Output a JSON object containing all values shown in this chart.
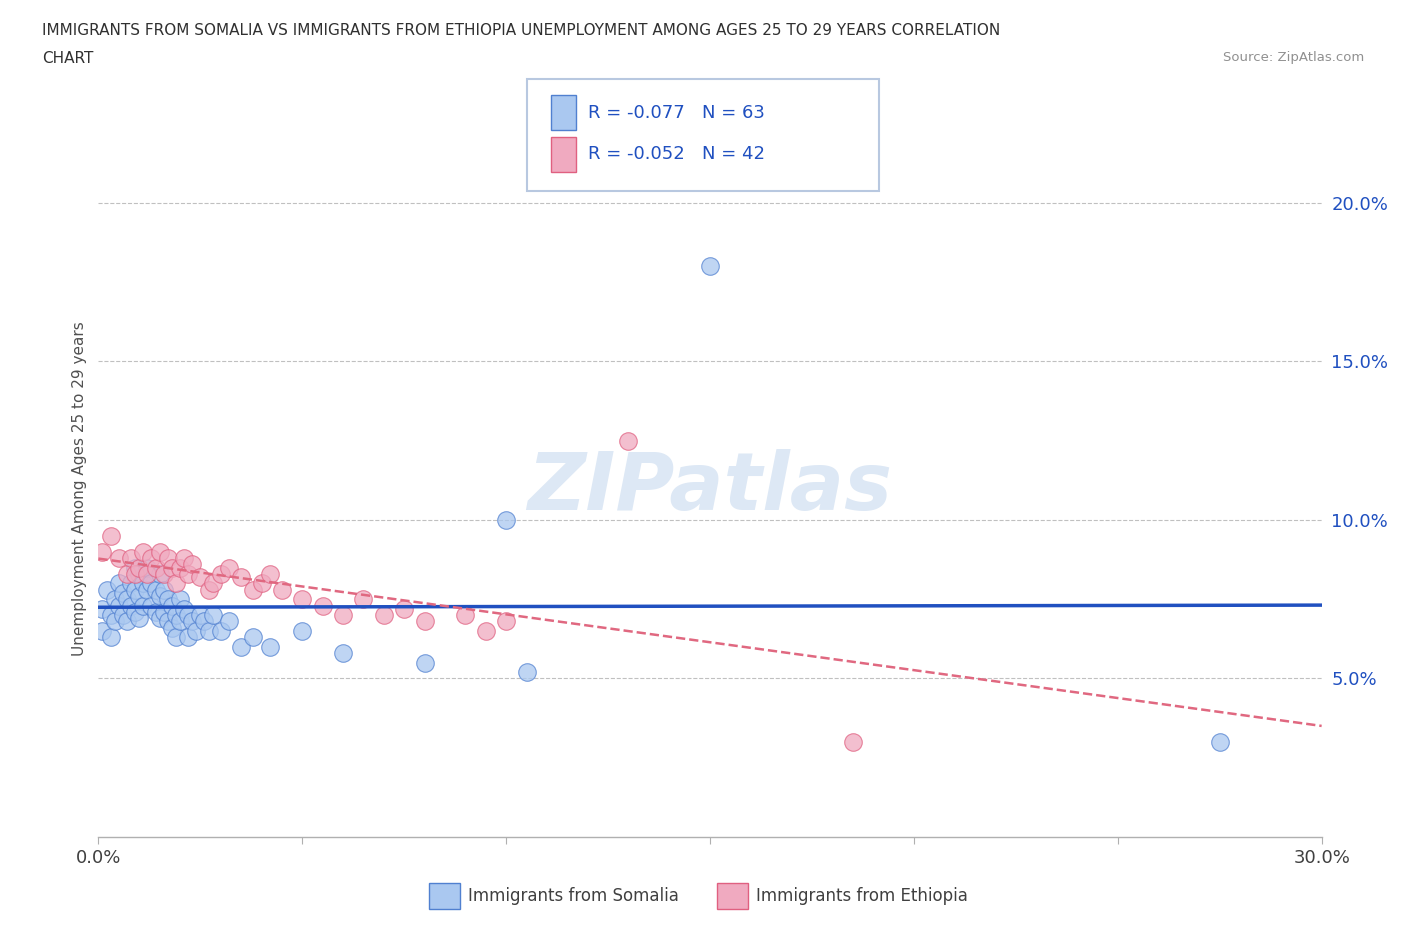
{
  "title_line1": "IMMIGRANTS FROM SOMALIA VS IMMIGRANTS FROM ETHIOPIA UNEMPLOYMENT AMONG AGES 25 TO 29 YEARS CORRELATION",
  "title_line2": "CHART",
  "source_text": "Source: ZipAtlas.com",
  "ylabel": "Unemployment Among Ages 25 to 29 years",
  "xlim": [
    0.0,
    0.3
  ],
  "ylim": [
    0.0,
    0.22
  ],
  "x_ticks": [
    0.0,
    0.05,
    0.1,
    0.15,
    0.2,
    0.25,
    0.3
  ],
  "y_ticks": [
    0.05,
    0.1,
    0.15,
    0.2
  ],
  "y_tick_labels": [
    "5.0%",
    "10.0%",
    "15.0%",
    "20.0%"
  ],
  "somalia_color": "#aac8f0",
  "ethiopia_color": "#f0aac0",
  "somalia_edge_color": "#5080d0",
  "ethiopia_edge_color": "#e06080",
  "somalia_line_color": "#2050c0",
  "ethiopia_line_color": "#e06880",
  "watermark_color": "#dde8f5",
  "legend_somalia_R": "R = -0.077",
  "legend_somalia_N": "N = 63",
  "legend_ethiopia_R": "R = -0.052",
  "legend_ethiopia_N": "N = 42",
  "somalia_x": [
    0.001,
    0.001,
    0.002,
    0.003,
    0.003,
    0.004,
    0.004,
    0.005,
    0.005,
    0.006,
    0.006,
    0.007,
    0.007,
    0.008,
    0.008,
    0.009,
    0.009,
    0.009,
    0.01,
    0.01,
    0.01,
    0.011,
    0.011,
    0.012,
    0.012,
    0.013,
    0.013,
    0.014,
    0.014,
    0.015,
    0.015,
    0.015,
    0.016,
    0.016,
    0.017,
    0.017,
    0.018,
    0.018,
    0.019,
    0.019,
    0.02,
    0.02,
    0.021,
    0.022,
    0.022,
    0.023,
    0.024,
    0.025,
    0.026,
    0.027,
    0.028,
    0.03,
    0.032,
    0.035,
    0.038,
    0.042,
    0.05,
    0.06,
    0.08,
    0.1,
    0.105,
    0.15,
    0.275
  ],
  "somalia_y": [
    0.072,
    0.065,
    0.078,
    0.07,
    0.063,
    0.075,
    0.068,
    0.08,
    0.073,
    0.077,
    0.07,
    0.075,
    0.068,
    0.08,
    0.073,
    0.085,
    0.078,
    0.071,
    0.083,
    0.076,
    0.069,
    0.08,
    0.073,
    0.085,
    0.078,
    0.08,
    0.073,
    0.078,
    0.071,
    0.083,
    0.076,
    0.069,
    0.078,
    0.071,
    0.075,
    0.068,
    0.073,
    0.066,
    0.07,
    0.063,
    0.075,
    0.068,
    0.072,
    0.07,
    0.063,
    0.068,
    0.065,
    0.07,
    0.068,
    0.065,
    0.07,
    0.065,
    0.068,
    0.06,
    0.063,
    0.06,
    0.065,
    0.058,
    0.055,
    0.1,
    0.052,
    0.18,
    0.03
  ],
  "ethiopia_x": [
    0.001,
    0.003,
    0.005,
    0.007,
    0.008,
    0.009,
    0.01,
    0.011,
    0.012,
    0.013,
    0.014,
    0.015,
    0.016,
    0.017,
    0.018,
    0.019,
    0.02,
    0.021,
    0.022,
    0.023,
    0.025,
    0.027,
    0.028,
    0.03,
    0.032,
    0.035,
    0.038,
    0.04,
    0.042,
    0.045,
    0.05,
    0.055,
    0.06,
    0.065,
    0.07,
    0.075,
    0.08,
    0.09,
    0.095,
    0.1,
    0.13,
    0.185
  ],
  "ethiopia_y": [
    0.09,
    0.095,
    0.088,
    0.083,
    0.088,
    0.083,
    0.085,
    0.09,
    0.083,
    0.088,
    0.085,
    0.09,
    0.083,
    0.088,
    0.085,
    0.08,
    0.085,
    0.088,
    0.083,
    0.086,
    0.082,
    0.078,
    0.08,
    0.083,
    0.085,
    0.082,
    0.078,
    0.08,
    0.083,
    0.078,
    0.075,
    0.073,
    0.07,
    0.075,
    0.07,
    0.072,
    0.068,
    0.07,
    0.065,
    0.068,
    0.125,
    0.03
  ]
}
